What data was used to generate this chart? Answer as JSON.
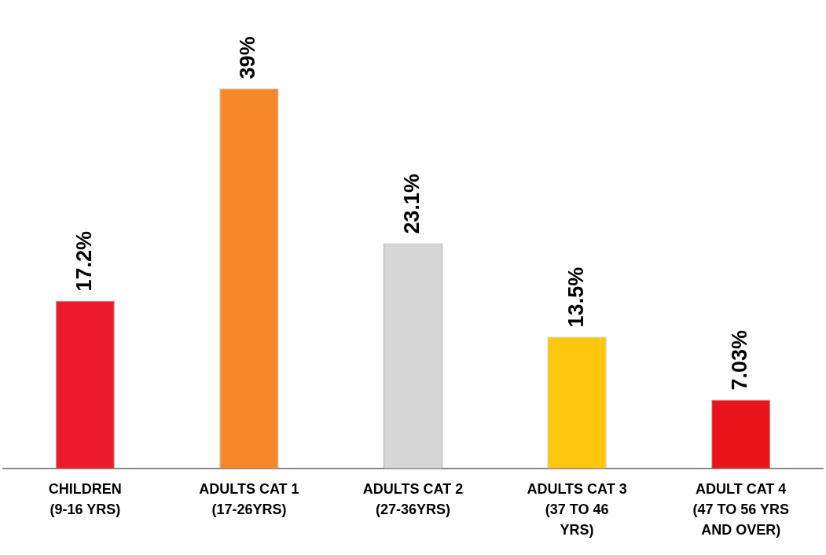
{
  "chart_data": {
    "type": "bar",
    "categories": [
      "CHILDREN (9-16 YRS)",
      "ADULTS CAT 1 (17-26YRS)",
      "ADULTS CAT 2 (27-36YRS)",
      "ADULTS CAT 3 (37 TO 46 YRS)",
      "ADULT CAT 4 (47 TO 56 YRS AND OVER)"
    ],
    "values": [
      17.2,
      39,
      23.1,
      13.5,
      7.03
    ],
    "colors": [
      "#ee1c2b",
      "#f7882a",
      "#d6d6d6",
      "#fcc70d",
      "#e8141a"
    ],
    "value_labels": [
      "17.2%",
      "39%",
      "23.1%",
      "13.5%",
      "7.03%"
    ],
    "grid": false,
    "legend": false
  }
}
